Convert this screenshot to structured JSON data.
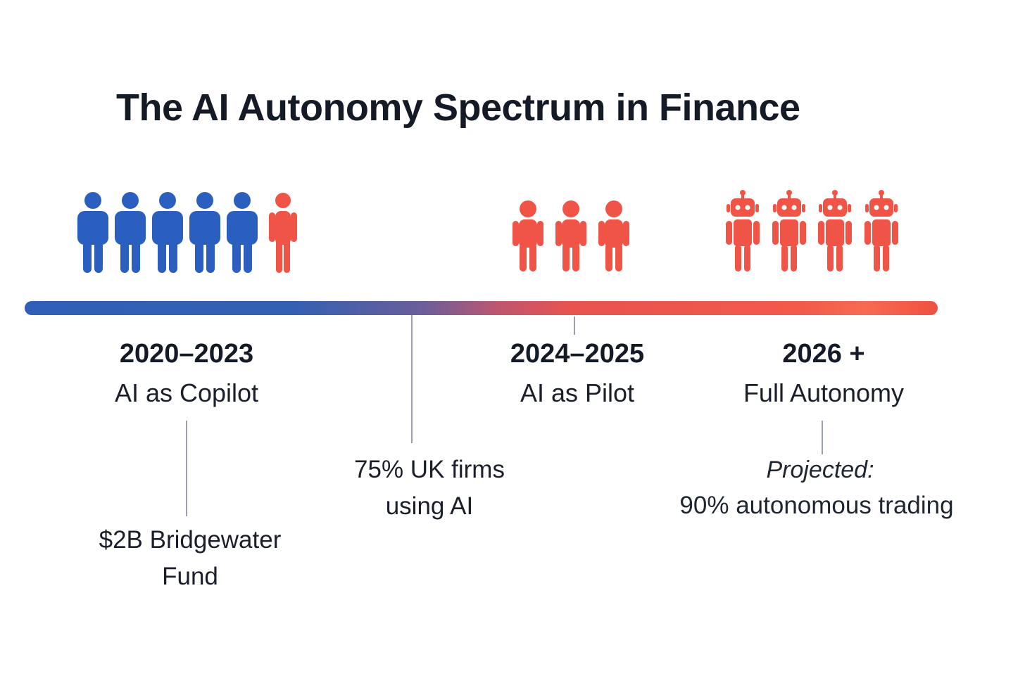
{
  "title": "The AI Autonomy Spectrum in Finance",
  "colors": {
    "blue": "#2a5fbf",
    "red": "#f05446",
    "tick": "#9aa1ab"
  },
  "icon_groups": {
    "copilot": {
      "human_blue_icons": 5,
      "human_red_icons": 1
    },
    "pilot": {
      "human_red_icons": 3
    },
    "autonomy": {
      "robot_red_icons": 4
    }
  },
  "phases": [
    {
      "years": "2020–2023",
      "label": "AI as Copilot",
      "note": [
        "$2B Bridgewater",
        "Fund"
      ]
    },
    {
      "years": "2024–2025",
      "label": "AI as Pilot"
    },
    {
      "years": "2026 +",
      "label": "Full Autonomy",
      "note_label": "Projected:",
      "note": "90% autonomous trading"
    }
  ],
  "milestone": {
    "lines": [
      "75% UK firms",
      "using AI"
    ]
  }
}
